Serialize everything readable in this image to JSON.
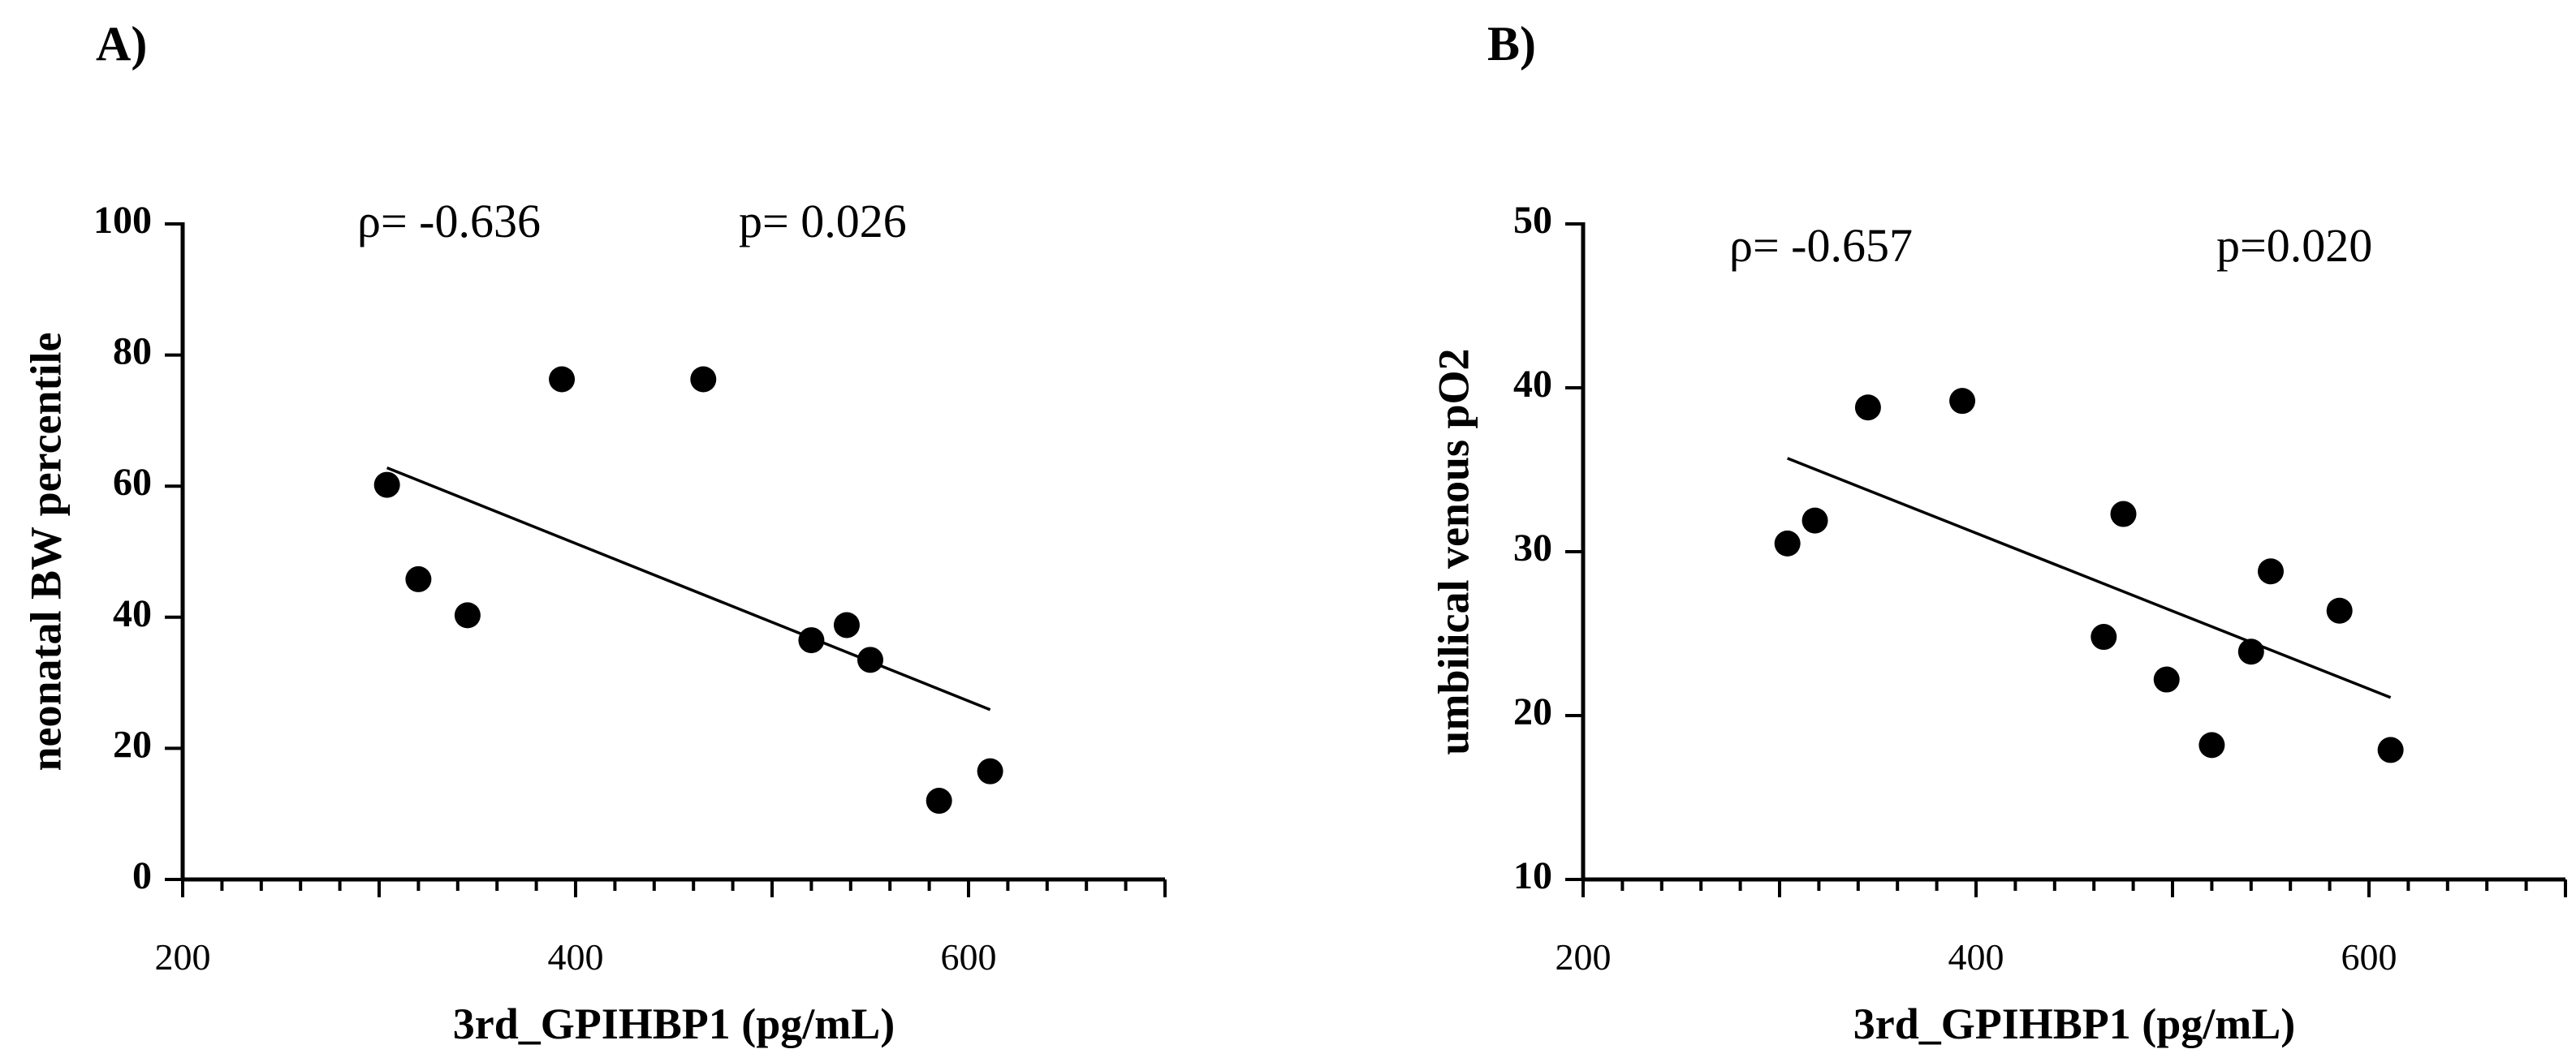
{
  "chart_data": [
    {
      "panel_label": "A)",
      "type": "scatter",
      "xlabel": "3rd_GPIHBP1 (pg/mL)",
      "ylabel": "neonatal BW percentile",
      "xlim": [
        200,
        700
      ],
      "ylim": [
        0,
        100
      ],
      "x_ticks": [
        200,
        400,
        600
      ],
      "y_ticks": [
        0,
        20,
        40,
        60,
        80,
        100
      ],
      "rho_text": "ρ= -0.636",
      "p_text": "p= 0.026",
      "x": [
        304,
        320,
        345,
        393,
        465,
        520,
        538,
        550,
        585,
        611
      ],
      "y": [
        60.2,
        45.8,
        40.3,
        76.3,
        76.3,
        36.5,
        38.8,
        33.5,
        12.0,
        16.5
      ],
      "fit_line": {
        "x": [
          304,
          611
        ],
        "y": [
          62.8,
          25.9
        ]
      }
    },
    {
      "panel_label": "B)",
      "type": "scatter",
      "xlabel": "3rd_GPIHBP1 (pg/mL)",
      "ylabel": "umbilical venous pO2",
      "xlim": [
        200,
        700
      ],
      "ylim": [
        10,
        50
      ],
      "x_ticks": [
        200,
        400,
        600
      ],
      "y_ticks": [
        10,
        20,
        30,
        40,
        50
      ],
      "rho_text": "ρ= -0.657",
      "p_text": "p=0.020",
      "x": [
        304,
        318,
        345,
        393,
        465,
        475,
        497,
        520,
        540,
        550,
        585,
        611
      ],
      "y": [
        30.5,
        31.9,
        38.8,
        39.2,
        24.8,
        32.3,
        22.2,
        18.2,
        23.9,
        28.8,
        26.4,
        17.9
      ],
      "fit_line": {
        "x": [
          304,
          611
        ],
        "y": [
          35.7,
          21.1
        ]
      }
    }
  ]
}
